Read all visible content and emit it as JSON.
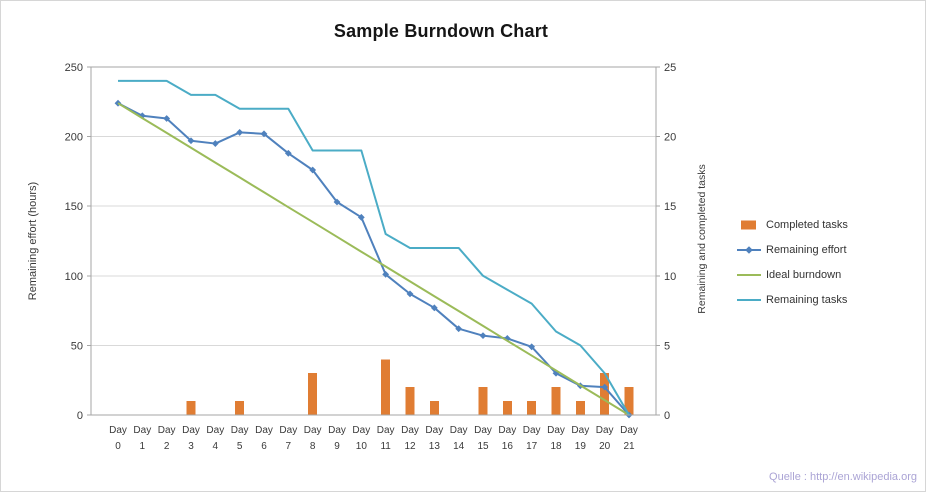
{
  "watermark": "Quelle : http://en.wikipedia.org",
  "chart_data": {
    "type": "combo",
    "title": "Sample Burndown Chart",
    "x_prefix": "Day",
    "days": [
      0,
      1,
      2,
      3,
      4,
      5,
      6,
      7,
      8,
      9,
      10,
      11,
      12,
      13,
      14,
      15,
      16,
      17,
      18,
      19,
      20,
      21
    ],
    "left_axis": {
      "label": "Remaining effort (hours)",
      "min": 0,
      "max": 250,
      "step": 50
    },
    "right_axis": {
      "label": "Remaining and completed tasks",
      "min": 0,
      "max": 25,
      "step": 5
    },
    "grid": true,
    "legend_position": "right",
    "series": [
      {
        "name": "Completed tasks",
        "type": "bar",
        "axis": "right",
        "color": "#E07D33",
        "values": [
          0,
          0,
          0,
          1,
          0,
          1,
          0,
          0,
          3,
          0,
          0,
          4,
          2,
          1,
          0,
          2,
          1,
          1,
          2,
          1,
          3,
          2
        ]
      },
      {
        "name": "Remaining effort",
        "type": "line",
        "marker": "diamond",
        "axis": "left",
        "color": "#4F81BD",
        "values": [
          224,
          215,
          213,
          197,
          195,
          203,
          202,
          188,
          176,
          153,
          142,
          101,
          87,
          77,
          62,
          57,
          55,
          49,
          30,
          21,
          20,
          0
        ]
      },
      {
        "name": "Ideal burndown",
        "type": "line",
        "marker": "none",
        "axis": "left",
        "color": "#9BBB59",
        "values": [
          224,
          213.3,
          202.7,
          192,
          181.3,
          170.7,
          160,
          149.3,
          138.7,
          128,
          117.3,
          106.7,
          96,
          85.3,
          74.7,
          64,
          53.3,
          42.7,
          32,
          21.3,
          10.7,
          0
        ]
      },
      {
        "name": "Remaining tasks",
        "type": "line",
        "marker": "none",
        "axis": "right",
        "color": "#4BACC6",
        "values": [
          24,
          24,
          24,
          23,
          23,
          22,
          22,
          22,
          19,
          19,
          19,
          13,
          12,
          12,
          12,
          10,
          9,
          8,
          6,
          5,
          3,
          0
        ]
      }
    ]
  }
}
